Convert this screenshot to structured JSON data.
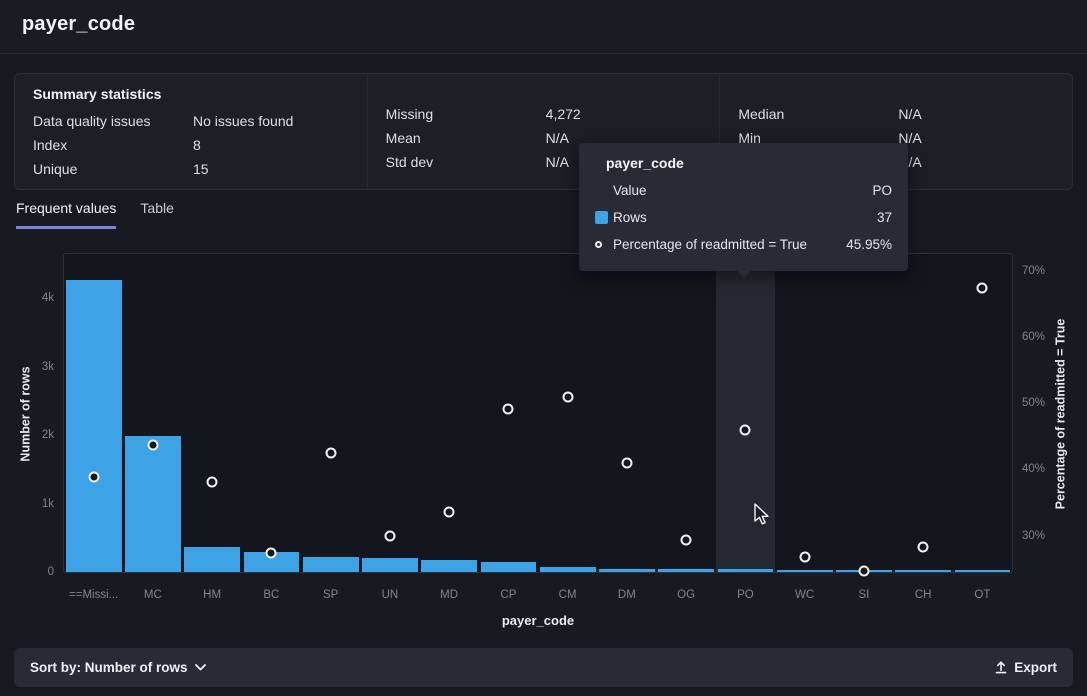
{
  "header": {
    "title": "payer_code"
  },
  "summary": {
    "title": "Summary statistics",
    "columns": [
      {
        "rows": [
          {
            "label": "Data quality issues",
            "value": "No issues found"
          },
          {
            "label": "Index",
            "value": "8"
          },
          {
            "label": "Unique",
            "value": "15"
          }
        ]
      },
      {
        "rows": [
          {
            "label": "Missing",
            "value": "4,272"
          },
          {
            "label": "Mean",
            "value": "N/A"
          },
          {
            "label": "Std dev",
            "value": "N/A"
          }
        ]
      },
      {
        "rows": [
          {
            "label": "Median",
            "value": "N/A"
          },
          {
            "label": "Min",
            "value": "N/A"
          },
          {
            "label": "Max",
            "value": "N/A"
          }
        ]
      }
    ]
  },
  "tabs": {
    "frequent_values": "Frequent values",
    "table": "Table"
  },
  "chart_data": {
    "type": "bar",
    "categories": [
      "==Missi...",
      "MC",
      "HM",
      "BC",
      "SP",
      "UN",
      "MD",
      "CP",
      "CM",
      "DM",
      "OG",
      "PO",
      "WC",
      "SI",
      "CH",
      "OT"
    ],
    "series": [
      {
        "name": "Rows",
        "type": "bar",
        "axis": "left",
        "color": "#3EA2E6",
        "values": [
          4272,
          1990,
          360,
          290,
          225,
          210,
          180,
          145,
          70,
          50,
          45,
          37,
          33,
          30,
          28,
          25
        ]
      },
      {
        "name": "Percentage of readmitted = True",
        "type": "scatter",
        "axis": "right",
        "values": [
          38.9,
          43.6,
          38.1,
          27.3,
          42.4,
          29.9,
          33.5,
          49.1,
          50.9,
          41.0,
          29.4,
          45.95,
          26.7,
          24.6,
          28.2,
          67.4
        ]
      }
    ],
    "xlabel": "payer_code",
    "left_axis": {
      "label": "Number of rows",
      "ticks": [
        "0",
        "1k",
        "2k",
        "3k",
        "4k"
      ],
      "tick_values": [
        0,
        1000,
        2000,
        3000,
        4000
      ],
      "min": 0,
      "max": 4650
    },
    "right_axis": {
      "label": "Percentage of readmitted = True",
      "ticks": [
        "30%",
        "40%",
        "50%",
        "60%",
        "70%"
      ],
      "tick_values": [
        30,
        40,
        50,
        60,
        70
      ],
      "min": 24.5,
      "max": 72.5
    },
    "grid": false,
    "legend": "none",
    "highlighted_category": "PO"
  },
  "tooltip": {
    "title": "payer_code",
    "rows": [
      {
        "label": "Value",
        "value": "PO",
        "icon": "none"
      },
      {
        "label": "Rows",
        "value": "37",
        "icon": "square"
      },
      {
        "label": "Percentage of readmitted = True",
        "value": "45.95%",
        "icon": "circle"
      }
    ]
  },
  "footer": {
    "sort_label": "Sort by: Number of rows",
    "export_label": "Export"
  },
  "colors": {
    "bar": "#3EA2E6",
    "tab_accent": "#7B82D9",
    "point_stroke": "#F0F2F5",
    "plot_bg": "#13161C"
  }
}
